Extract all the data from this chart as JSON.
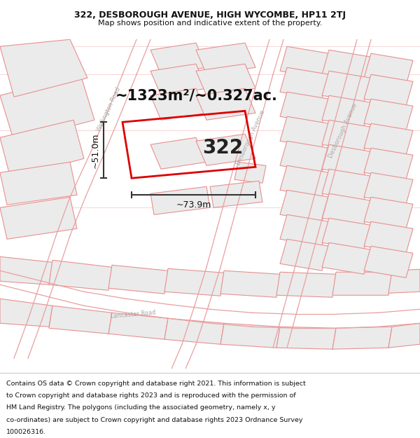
{
  "title_line1": "322, DESBOROUGH AVENUE, HIGH WYCOMBE, HP11 2TJ",
  "title_line2": "Map shows position and indicative extent of the property.",
  "footer_lines": [
    "Contains OS data © Crown copyright and database right 2021. This information is subject",
    "to Crown copyright and database rights 2023 and is reproduced with the permission of",
    "HM Land Registry. The polygons (including the associated geometry, namely x, y",
    "co-ordinates) are subject to Crown copyright and database rights 2023 Ordnance Survey",
    "100026316."
  ],
  "map_bg": "#ffffff",
  "block_fill": "#e8e8e8",
  "block_edge": "#e89090",
  "road_fill": "#ffffff",
  "road_edge": "#d08080",
  "plot_color": "#dd0000",
  "dim_color": "#333333",
  "label_color": "#aaaaaa",
  "area_text": "~1323m²/~0.327ac.",
  "property_number": "322",
  "dim_width": "~73.9m",
  "dim_height": "~51.0m",
  "title_fontsize": 9,
  "subtitle_fontsize": 8,
  "footer_fontsize": 6.8,
  "area_fontsize": 15,
  "num_fontsize": 20,
  "dim_fontsize": 9,
  "road_label_fontsize": 6,
  "road_label_color": "#aaaaaa"
}
